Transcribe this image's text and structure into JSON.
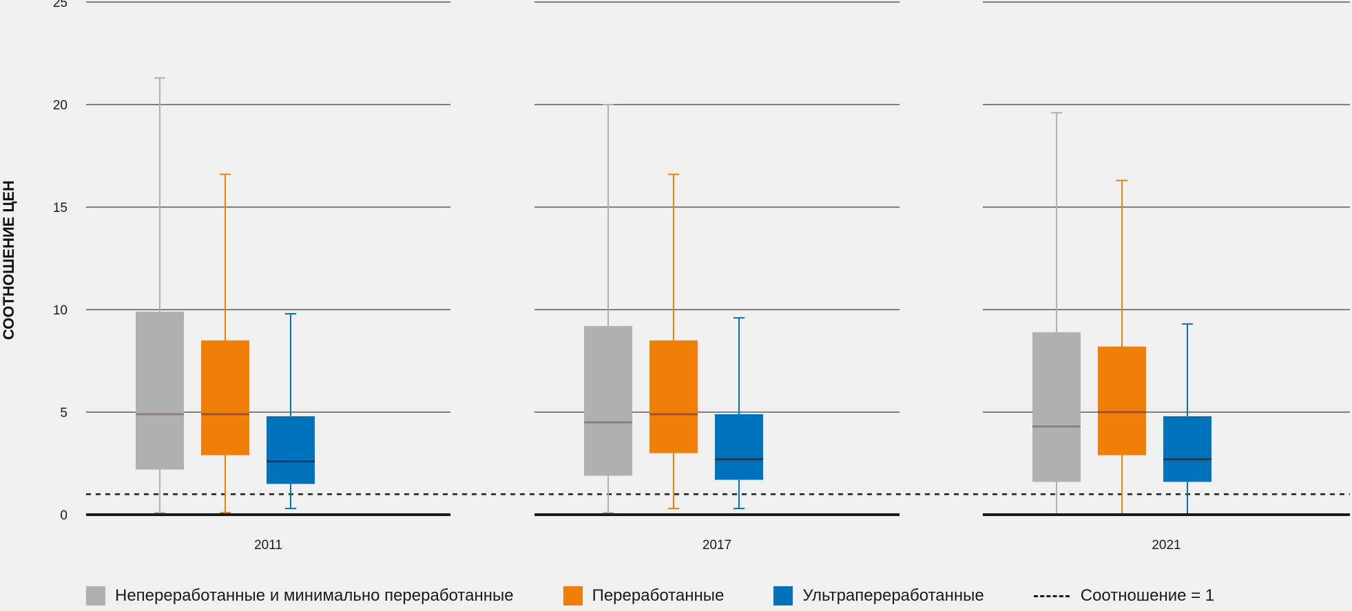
{
  "chart_data": {
    "type": "boxplot",
    "ylabel": "СООТНОШЕНИЕ ЦЕН",
    "ylim": [
      0,
      25
    ],
    "yticks": [
      0,
      5,
      10,
      15,
      20,
      25
    ],
    "grid": true,
    "reference_line": {
      "y": 1,
      "style": "dashed",
      "label": "Соотношение = 1"
    },
    "groups": [
      "2011",
      "2017",
      "2021"
    ],
    "series": [
      {
        "name": "Непереработанные и минимально переработанные",
        "color": "#b0b0b0",
        "median_color": "#8c7f7f",
        "boxes": [
          {
            "min": 0.1,
            "q1": 2.2,
            "median": 4.9,
            "q3": 9.9,
            "max": 21.3
          },
          {
            "min": 0.1,
            "q1": 1.9,
            "median": 4.5,
            "q3": 9.2,
            "max": 20.0
          },
          {
            "min": 0.0,
            "q1": 1.6,
            "median": 4.3,
            "q3": 8.9,
            "max": 19.6
          }
        ]
      },
      {
        "name": "Переработанные",
        "color": "#f07f09",
        "median_color": "#a0522d",
        "boxes": [
          {
            "min": 0.1,
            "q1": 2.9,
            "median": 4.9,
            "q3": 8.5,
            "max": 16.6
          },
          {
            "min": 0.3,
            "q1": 3.0,
            "median": 4.9,
            "q3": 8.5,
            "max": 16.6
          },
          {
            "min": 0.0,
            "q1": 2.9,
            "median": 5.0,
            "q3": 8.2,
            "max": 16.3
          }
        ]
      },
      {
        "name": "Ультрапереработанные",
        "color": "#0072bc",
        "median_color": "#1f3a5a",
        "boxes": [
          {
            "min": 0.3,
            "q1": 1.5,
            "median": 2.6,
            "q3": 4.8,
            "max": 9.8
          },
          {
            "min": 0.3,
            "q1": 1.7,
            "median": 2.7,
            "q3": 4.9,
            "max": 9.6
          },
          {
            "min": 0.0,
            "q1": 1.6,
            "median": 2.7,
            "q3": 4.8,
            "max": 9.3
          }
        ]
      }
    ],
    "legend": {
      "position": "bottom",
      "items": [
        "Непереработанные и минимально переработанные",
        "Переработанные",
        "Ультрапереработанные",
        "Соотношение = 1"
      ]
    }
  }
}
